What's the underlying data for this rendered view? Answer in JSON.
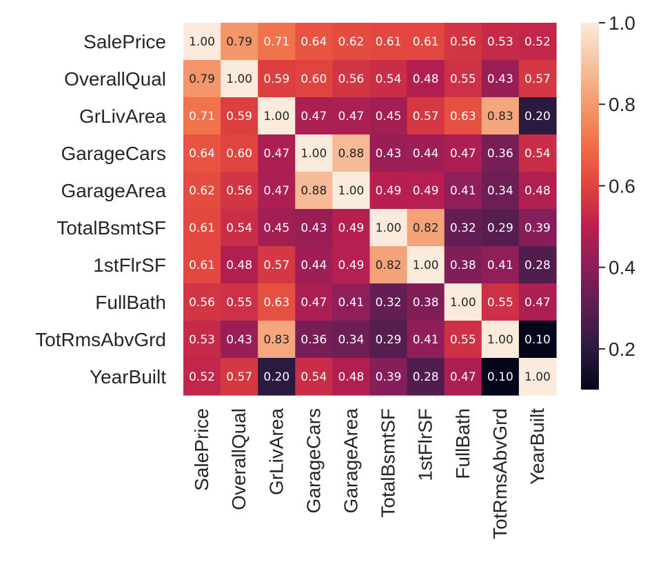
{
  "chart_data": {
    "type": "heatmap",
    "title": "",
    "xlabel": "",
    "ylabel": "",
    "labels": [
      "SalePrice",
      "OverallQual",
      "GrLivArea",
      "GarageCars",
      "GarageArea",
      "TotalBsmtSF",
      "1stFlrSF",
      "FullBath",
      "TotRmsAbvGrd",
      "YearBuilt"
    ],
    "values": [
      [
        1.0,
        0.79,
        0.71,
        0.64,
        0.62,
        0.61,
        0.61,
        0.56,
        0.53,
        0.52
      ],
      [
        0.79,
        1.0,
        0.59,
        0.6,
        0.56,
        0.54,
        0.48,
        0.55,
        0.43,
        0.57
      ],
      [
        0.71,
        0.59,
        1.0,
        0.47,
        0.47,
        0.45,
        0.57,
        0.63,
        0.83,
        0.2
      ],
      [
        0.64,
        0.6,
        0.47,
        1.0,
        0.88,
        0.43,
        0.44,
        0.47,
        0.36,
        0.54
      ],
      [
        0.62,
        0.56,
        0.47,
        0.88,
        1.0,
        0.49,
        0.49,
        0.41,
        0.34,
        0.48
      ],
      [
        0.61,
        0.54,
        0.45,
        0.43,
        0.49,
        1.0,
        0.82,
        0.32,
        0.29,
        0.39
      ],
      [
        0.61,
        0.48,
        0.57,
        0.44,
        0.49,
        0.82,
        1.0,
        0.38,
        0.41,
        0.28
      ],
      [
        0.56,
        0.55,
        0.63,
        0.47,
        0.41,
        0.32,
        0.38,
        1.0,
        0.55,
        0.47
      ],
      [
        0.53,
        0.43,
        0.83,
        0.36,
        0.34,
        0.29,
        0.41,
        0.55,
        1.0,
        0.1
      ],
      [
        0.52,
        0.57,
        0.2,
        0.54,
        0.48,
        0.39,
        0.28,
        0.47,
        0.1,
        1.0
      ]
    ],
    "colorbar": {
      "vmin": 0.1,
      "vmax": 1.0,
      "ticks": [
        0.2,
        0.4,
        0.6,
        0.8,
        1.0
      ],
      "tick_labels": [
        "0.2",
        "0.4",
        "0.6",
        "0.8",
        "1.0"
      ]
    },
    "colormap": "rocket",
    "colormap_stops": [
      "#03051a",
      "#2b1a3f",
      "#5a1e51",
      "#8a1e5a",
      "#bb1f4e",
      "#e1433e",
      "#f06f47",
      "#f49a6d",
      "#f6c2a1",
      "#faebdd"
    ],
    "annotation_format": "2 decimals",
    "grid": false
  }
}
